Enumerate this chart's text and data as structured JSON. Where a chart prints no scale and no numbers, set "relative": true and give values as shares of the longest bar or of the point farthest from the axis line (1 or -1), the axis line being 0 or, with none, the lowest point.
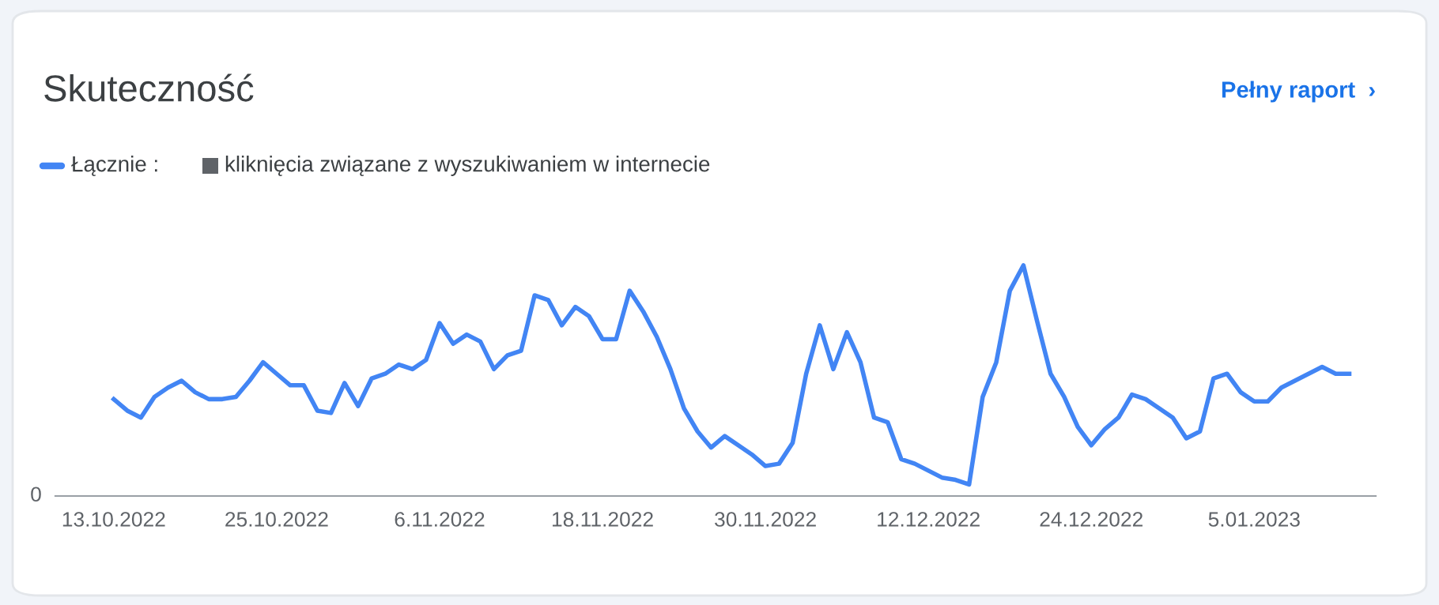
{
  "chart_data": {
    "type": "line",
    "title": "Skuteczność",
    "relative": true,
    "categories": [
      "13.10.2022",
      null,
      null,
      null,
      null,
      null,
      null,
      null,
      null,
      null,
      null,
      null,
      "25.10.2022",
      null,
      null,
      null,
      null,
      null,
      null,
      null,
      null,
      null,
      null,
      null,
      "6.11.2022",
      null,
      null,
      null,
      null,
      null,
      null,
      null,
      null,
      null,
      null,
      null,
      "18.11.2022",
      null,
      null,
      null,
      null,
      null,
      null,
      null,
      null,
      null,
      null,
      null,
      "30.11.2022",
      null,
      null,
      null,
      null,
      null,
      null,
      null,
      null,
      null,
      null,
      null,
      "12.12.2022",
      null,
      null,
      null,
      null,
      null,
      null,
      null,
      null,
      null,
      null,
      null,
      "24.12.2022",
      null,
      null,
      null,
      null,
      null,
      null,
      null,
      null,
      null,
      null,
      null,
      "5.01.2023",
      null,
      null,
      null,
      null,
      null,
      null,
      null
    ],
    "series": [
      {
        "name": "Łącznie :",
        "color": "#4285f4",
        "values": [
          0.42,
          0.37,
          0.34,
          0.43,
          0.47,
          0.5,
          0.45,
          0.42,
          0.42,
          0.43,
          0.5,
          0.58,
          0.53,
          0.48,
          0.48,
          0.37,
          0.36,
          0.49,
          0.39,
          0.51,
          0.53,
          0.57,
          0.55,
          0.59,
          0.75,
          0.66,
          0.7,
          0.67,
          0.55,
          0.61,
          0.63,
          0.87,
          0.85,
          0.74,
          0.82,
          0.78,
          0.68,
          0.68,
          0.89,
          0.8,
          0.69,
          0.55,
          0.38,
          0.28,
          0.21,
          0.26,
          0.22,
          0.18,
          0.13,
          0.14,
          0.23,
          0.53,
          0.74,
          0.55,
          0.71,
          0.58,
          0.34,
          0.32,
          0.16,
          0.14,
          0.11,
          0.08,
          0.07,
          0.05,
          0.43,
          0.58,
          0.89,
          1.0,
          0.76,
          0.53,
          0.43,
          0.3,
          0.22,
          0.29,
          0.34,
          0.44,
          0.42,
          0.38,
          0.34,
          0.25,
          0.28,
          0.51,
          0.53,
          0.45,
          0.41,
          0.41,
          0.47,
          0.5,
          0.53,
          0.56,
          0.53,
          0.53
        ]
      }
    ],
    "legend": "top left",
    "marker": "none",
    "line_style": "solid",
    "annotations": [
      "Pełny raport  ›",
      "kliknięcia związane z wyszukiwaniem w internecie",
      "0"
    ]
  }
}
